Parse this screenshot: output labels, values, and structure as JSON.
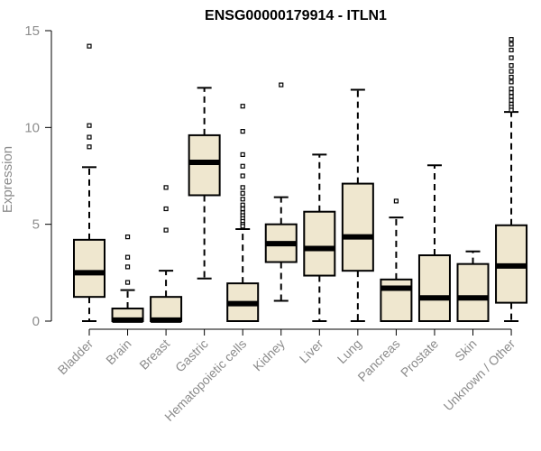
{
  "chart_data": {
    "type": "boxplot",
    "title": "ENSG00000179914 - ITLN1",
    "xlabel": "",
    "ylabel": "Expression",
    "ylim": [
      0,
      15
    ],
    "yticks": [
      0,
      5,
      10,
      15
    ],
    "grid": false,
    "box_fill": "#efe7cf",
    "categories": [
      "Bladder",
      "Brain",
      "Breast",
      "Gastric",
      "Hematopoietic cells",
      "Kidney",
      "Liver",
      "Lung",
      "Pancreas",
      "Prostate",
      "Skin",
      "Unknown / Other"
    ],
    "boxes": [
      {
        "category": "Bladder",
        "whisker_low": 0,
        "q1": 1.25,
        "median": 2.5,
        "q3": 4.2,
        "whisker_high": 7.95,
        "outliers": [
          14.2,
          10.1,
          9.5,
          9.0
        ]
      },
      {
        "category": "Brain",
        "whisker_low": 0,
        "q1": 0,
        "median": 0.05,
        "q3": 0.65,
        "whisker_high": 1.6,
        "outliers": [
          4.35,
          3.3,
          2.8,
          2.0
        ]
      },
      {
        "category": "Breast",
        "whisker_low": 0,
        "q1": 0,
        "median": 0.05,
        "q3": 1.25,
        "whisker_high": 2.6,
        "outliers": [
          6.9,
          5.8,
          4.7
        ]
      },
      {
        "category": "Gastric",
        "whisker_low": 2.2,
        "q1": 6.5,
        "median": 8.2,
        "q3": 9.6,
        "whisker_high": 12.05,
        "outliers": []
      },
      {
        "category": "Hematopoietic cells",
        "whisker_low": 0,
        "q1": 0,
        "median": 0.9,
        "q3": 1.95,
        "whisker_high": 4.75,
        "outliers": [
          11.1,
          9.8,
          8.6,
          8.0,
          7.5,
          6.9,
          6.6,
          6.3,
          6.0,
          5.8,
          5.6,
          5.45,
          5.3,
          5.15,
          5.0,
          4.9
        ]
      },
      {
        "category": "Kidney",
        "whisker_low": 1.05,
        "q1": 3.05,
        "median": 4.0,
        "q3": 5.0,
        "whisker_high": 6.4,
        "outliers": [
          12.2
        ]
      },
      {
        "category": "Liver",
        "whisker_low": 0,
        "q1": 2.35,
        "median": 3.75,
        "q3": 5.65,
        "whisker_high": 8.6,
        "outliers": []
      },
      {
        "category": "Lung",
        "whisker_low": 0,
        "q1": 2.6,
        "median": 4.35,
        "q3": 7.1,
        "whisker_high": 11.95,
        "outliers": []
      },
      {
        "category": "Pancreas",
        "whisker_low": 0,
        "q1": 0,
        "median": 1.7,
        "q3": 2.15,
        "whisker_high": 5.35,
        "outliers": [
          6.2
        ]
      },
      {
        "category": "Prostate",
        "whisker_low": 0,
        "q1": 0,
        "median": 1.2,
        "q3": 3.4,
        "whisker_high": 8.05,
        "outliers": []
      },
      {
        "category": "Skin",
        "whisker_low": 0,
        "q1": 0,
        "median": 1.2,
        "q3": 2.95,
        "whisker_high": 3.6,
        "outliers": []
      },
      {
        "category": "Unknown / Other",
        "whisker_low": 0,
        "q1": 0.95,
        "median": 2.85,
        "q3": 4.95,
        "whisker_high": 10.8,
        "outliers": [
          14.55,
          14.3,
          14.0,
          13.6,
          13.2,
          12.9,
          12.6,
          12.35,
          12.0,
          11.8,
          11.6,
          11.4,
          11.2,
          11.05,
          10.9
        ]
      }
    ]
  }
}
